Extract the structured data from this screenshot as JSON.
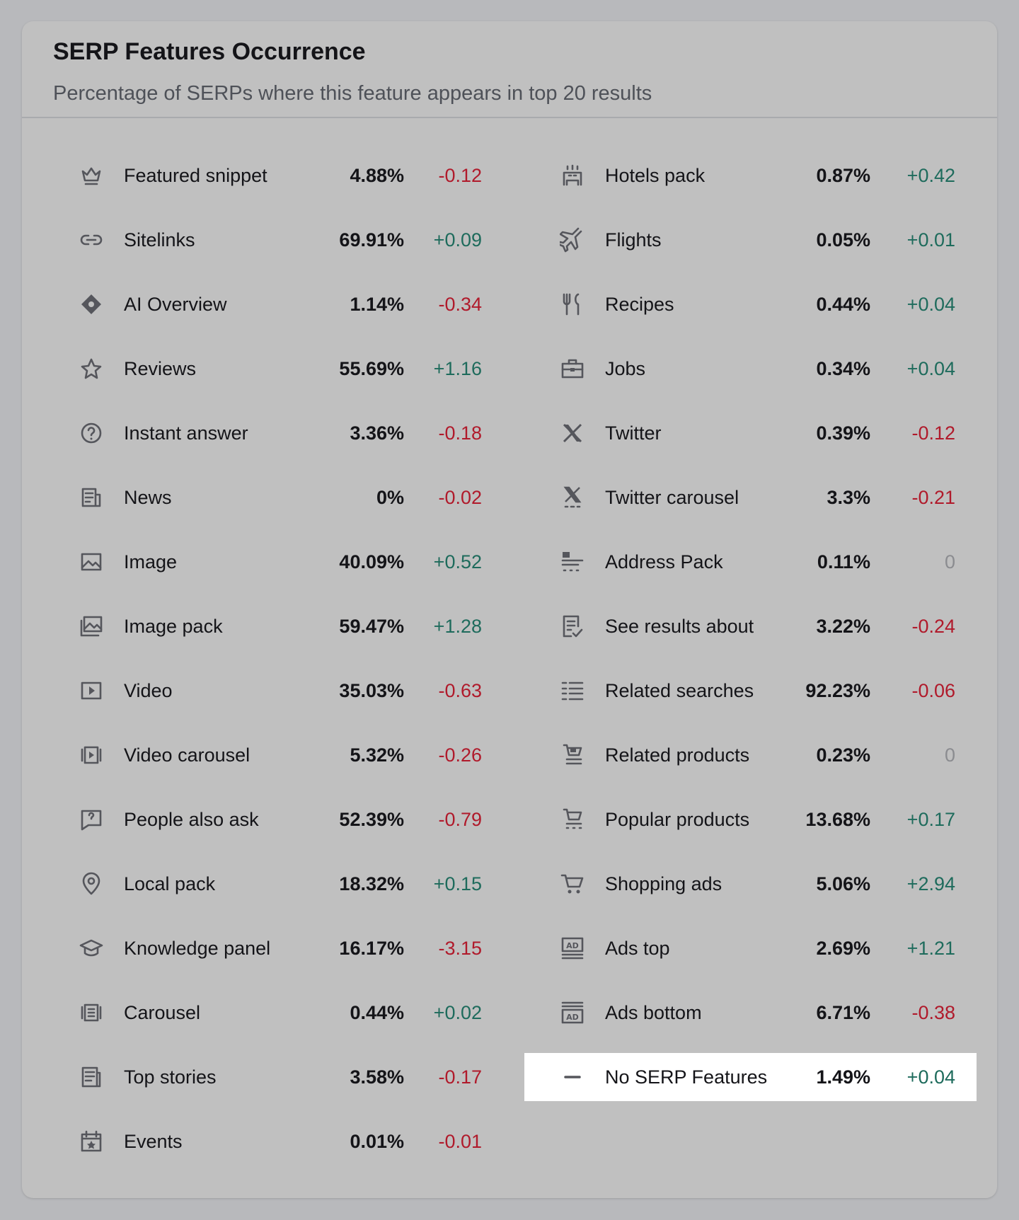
{
  "header": {
    "title": "SERP Features Occurrence",
    "subtitle": "Percentage of SERPs where this feature appears in top 20 results"
  },
  "colors": {
    "positive": "#1e6b5c",
    "negative": "#b01a2b",
    "neutral": "#8b8c90",
    "highlight": "#ffffff"
  },
  "left_column": [
    {
      "icon": "crown-icon",
      "label": "Featured snippet",
      "pct": "4.88%",
      "delta": "-0.12"
    },
    {
      "icon": "link-icon",
      "label": "Sitelinks",
      "pct": "69.91%",
      "delta": "+0.09"
    },
    {
      "icon": "sparkle-icon",
      "label": "AI Overview",
      "pct": "1.14%",
      "delta": "-0.34"
    },
    {
      "icon": "star-icon",
      "label": "Reviews",
      "pct": "55.69%",
      "delta": "+1.16"
    },
    {
      "icon": "question-icon",
      "label": "Instant answer",
      "pct": "3.36%",
      "delta": "-0.18"
    },
    {
      "icon": "news-icon",
      "label": "News",
      "pct": "0%",
      "delta": "-0.02"
    },
    {
      "icon": "image-icon",
      "label": "Image",
      "pct": "40.09%",
      "delta": "+0.52"
    },
    {
      "icon": "image-pack-icon",
      "label": "Image pack",
      "pct": "59.47%",
      "delta": "+1.28"
    },
    {
      "icon": "video-icon",
      "label": "Video",
      "pct": "35.03%",
      "delta": "-0.63"
    },
    {
      "icon": "video-carousel-icon",
      "label": "Video carousel",
      "pct": "5.32%",
      "delta": "-0.26"
    },
    {
      "icon": "question-bubble-icon",
      "label": "People also ask",
      "pct": "52.39%",
      "delta": "-0.79"
    },
    {
      "icon": "map-pin-icon",
      "label": "Local pack",
      "pct": "18.32%",
      "delta": "+0.15"
    },
    {
      "icon": "graduation-cap-icon",
      "label": "Knowledge panel",
      "pct": "16.17%",
      "delta": "-3.15"
    },
    {
      "icon": "carousel-icon",
      "label": "Carousel",
      "pct": "0.44%",
      "delta": "+0.02"
    },
    {
      "icon": "top-stories-icon",
      "label": "Top stories",
      "pct": "3.58%",
      "delta": "-0.17"
    },
    {
      "icon": "calendar-star-icon",
      "label": "Events",
      "pct": "0.01%",
      "delta": "-0.01"
    }
  ],
  "right_column": [
    {
      "icon": "hotel-icon",
      "label": "Hotels pack",
      "pct": "0.87%",
      "delta": "+0.42"
    },
    {
      "icon": "plane-icon",
      "label": "Flights",
      "pct": "0.05%",
      "delta": "+0.01"
    },
    {
      "icon": "fork-knife-icon",
      "label": "Recipes",
      "pct": "0.44%",
      "delta": "+0.04"
    },
    {
      "icon": "briefcase-icon",
      "label": "Jobs",
      "pct": "0.34%",
      "delta": "+0.04"
    },
    {
      "icon": "x-logo-icon",
      "label": "Twitter",
      "pct": "0.39%",
      "delta": "-0.12"
    },
    {
      "icon": "x-carousel-icon",
      "label": "Twitter carousel",
      "pct": "3.3%",
      "delta": "-0.21"
    },
    {
      "icon": "address-pack-icon",
      "label": "Address Pack",
      "pct": "0.11%",
      "delta": "0"
    },
    {
      "icon": "list-check-icon",
      "label": "See results about",
      "pct": "3.22%",
      "delta": "-0.24"
    },
    {
      "icon": "list-icon",
      "label": "Related searches",
      "pct": "92.23%",
      "delta": "-0.06"
    },
    {
      "icon": "cart-box-icon",
      "label": "Related products",
      "pct": "0.23%",
      "delta": "0"
    },
    {
      "icon": "cart-stars-icon",
      "label": "Popular products",
      "pct": "13.68%",
      "delta": "+0.17"
    },
    {
      "icon": "cart-icon",
      "label": "Shopping ads",
      "pct": "5.06%",
      "delta": "+2.94"
    },
    {
      "icon": "ad-top-icon",
      "label": "Ads top",
      "pct": "2.69%",
      "delta": "+1.21"
    },
    {
      "icon": "ad-bottom-icon",
      "label": "Ads bottom",
      "pct": "6.71%",
      "delta": "-0.38"
    },
    {
      "icon": "minus-icon",
      "label": "No SERP Features",
      "pct": "1.49%",
      "delta": "+0.04",
      "highlighted": true
    }
  ]
}
